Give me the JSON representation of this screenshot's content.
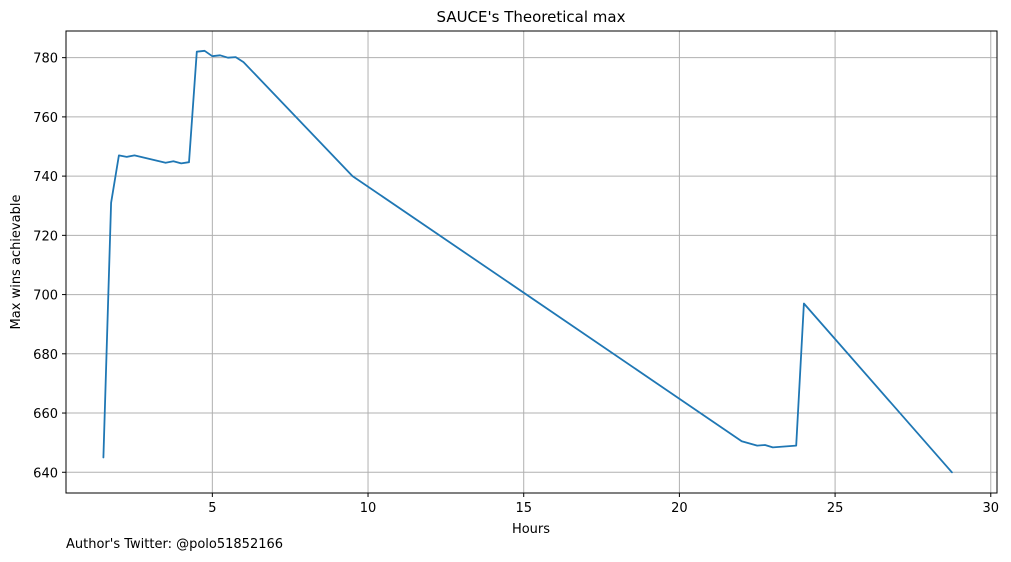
{
  "chart_data": {
    "type": "line",
    "title": "SAUCE's Theoretical max",
    "xlabel": "Hours",
    "ylabel": "Max wins achievable",
    "xlim": [
      0.3,
      30.2
    ],
    "ylim": [
      633,
      789
    ],
    "xticks": [
      5,
      10,
      15,
      20,
      25,
      30
    ],
    "yticks": [
      640,
      660,
      680,
      700,
      720,
      740,
      760,
      780
    ],
    "grid": true,
    "color": "#1f77b4",
    "series": [
      {
        "x": [
          1.5,
          1.75,
          2.0,
          2.25,
          2.5,
          3.5,
          3.75,
          4.0,
          4.25,
          4.5,
          4.75,
          5.0,
          5.25,
          5.5,
          5.75,
          6.0,
          9.5,
          22.0,
          22.5,
          22.75,
          23.0,
          23.75,
          24.0,
          28.75
        ],
        "y": [
          645,
          731,
          747,
          746.5,
          747,
          744.5,
          745,
          744.3,
          744.7,
          782,
          782.3,
          780.5,
          780.8,
          780,
          780.2,
          778.5,
          740,
          650.5,
          649,
          649.2,
          648.4,
          649,
          697,
          640
        ]
      }
    ]
  },
  "footnote": "Author's Twitter: @polo51852166"
}
